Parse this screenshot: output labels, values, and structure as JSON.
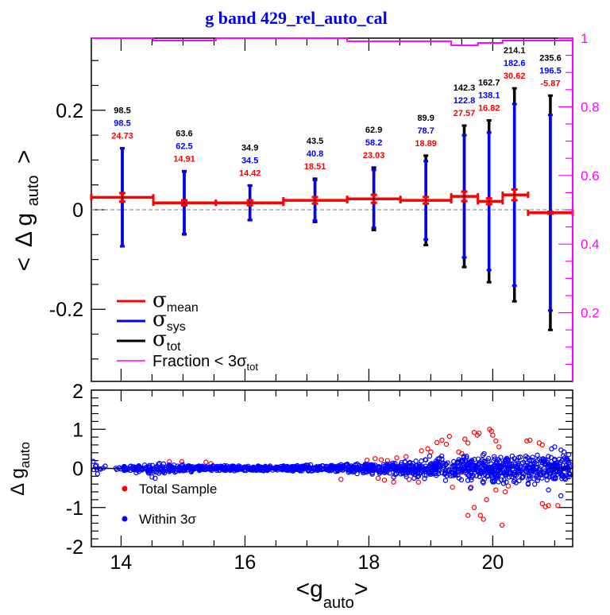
{
  "chart_data": [
    {
      "panel": "upper",
      "type": "line",
      "title": "g band 429_rel_auto_cal",
      "xlabel": "<g_auto>",
      "ylabel": "< Δ g_auto >",
      "xlim": [
        13.52,
        21.29
      ],
      "ylim": [
        -0.345,
        0.345
      ],
      "y_ticks": [
        -0.2,
        0,
        0.2
      ],
      "y_tick_labels": [
        "-0.2",
        "0",
        "0.2"
      ],
      "y_minor_step": 0.05,
      "x_ticks": [
        14,
        16,
        18,
        20
      ],
      "x_minor_step": 0.5,
      "right_axis": {
        "label": "Fraction < 3σ_tot",
        "ylim": [
          0,
          1.0
        ],
        "ticks": [
          0.2,
          0.4,
          0.6,
          0.8,
          1
        ],
        "tick_labels": [
          "0.2",
          "0.4",
          "0.6",
          "0.8",
          "1"
        ],
        "minor_step": 0.05,
        "color": "#ff00ff"
      },
      "reference_line": {
        "y": 0,
        "style": "dashed",
        "color": "#999999"
      },
      "bins": [
        {
          "x": 14.02,
          "xlo": 13.52,
          "xhi": 14.52,
          "mean": 0.025,
          "sigma_mean_mmag": 24.73,
          "sigma_sys_mmag": 98.5,
          "sigma_tot_mmag": 98.5,
          "fraction": 1.0
        },
        {
          "x": 15.02,
          "xlo": 14.52,
          "xhi": 15.53,
          "mean": 0.014,
          "sigma_mean_mmag": 14.91,
          "sigma_sys_mmag": 62.5,
          "sigma_tot_mmag": 63.6,
          "fraction": 0.993
        },
        {
          "x": 16.08,
          "xlo": 15.53,
          "xhi": 16.62,
          "mean": 0.014,
          "sigma_mean_mmag": 14.42,
          "sigma_sys_mmag": 34.5,
          "sigma_tot_mmag": 34.9,
          "fraction": 1.0
        },
        {
          "x": 17.13,
          "xlo": 16.62,
          "xhi": 17.65,
          "mean": 0.019,
          "sigma_mean_mmag": 18.51,
          "sigma_sys_mmag": 40.8,
          "sigma_tot_mmag": 43.5,
          "fraction": 1.0
        },
        {
          "x": 18.08,
          "xlo": 17.65,
          "xhi": 18.51,
          "mean": 0.022,
          "sigma_mean_mmag": 23.03,
          "sigma_sys_mmag": 58.2,
          "sigma_tot_mmag": 62.9,
          "fraction": 0.991
        },
        {
          "x": 18.92,
          "xlo": 18.51,
          "xhi": 19.33,
          "mean": 0.019,
          "sigma_mean_mmag": 18.89,
          "sigma_sys_mmag": 78.7,
          "sigma_tot_mmag": 89.9,
          "fraction": 0.991
        },
        {
          "x": 19.54,
          "xlo": 19.33,
          "xhi": 19.76,
          "mean": 0.027,
          "sigma_mean_mmag": 27.57,
          "sigma_sys_mmag": 122.8,
          "sigma_tot_mmag": 142.3,
          "fraction": 0.979
        },
        {
          "x": 19.94,
          "xlo": 19.76,
          "xhi": 20.16,
          "mean": 0.017,
          "sigma_mean_mmag": 16.82,
          "sigma_sys_mmag": 138.1,
          "sigma_tot_mmag": 162.7,
          "fraction": 0.986
        },
        {
          "x": 20.35,
          "xlo": 20.16,
          "xhi": 20.57,
          "mean": 0.03,
          "sigma_mean_mmag": 30.62,
          "sigma_sys_mmag": 182.6,
          "sigma_tot_mmag": 214.1,
          "fraction": 0.993
        },
        {
          "x": 20.93,
          "xlo": 20.57,
          "xhi": 21.29,
          "mean": -0.006,
          "sigma_mean_mmag": -5.87,
          "sigma_sys_mmag": 196.5,
          "sigma_tot_mmag": 235.6,
          "fraction": 0.993
        }
      ],
      "data_labels": [
        {
          "tot": "98.5",
          "sys": "98.5",
          "mean": "24.73"
        },
        {
          "tot": "63.6",
          "sys": "62.5",
          "mean": "14.91"
        },
        {
          "tot": "34.9",
          "sys": "34.5",
          "mean": "14.42"
        },
        {
          "tot": "43.5",
          "sys": "40.8",
          "mean": "18.51"
        },
        {
          "tot": "62.9",
          "sys": "58.2",
          "mean": "23.03"
        },
        {
          "tot": "89.9",
          "sys": "78.7",
          "mean": "18.89"
        },
        {
          "tot": "142.3",
          "sys": "122.8",
          "mean": "27.57"
        },
        {
          "tot": "162.7",
          "sys": "138.1",
          "mean": "16.82"
        },
        {
          "tot": "214.1",
          "sys": "182.6",
          "mean": "30.62"
        },
        {
          "tot": "235.6",
          "sys": "196.5",
          "mean": "-5.87"
        }
      ],
      "legend": {
        "placement": "bottom-left",
        "entries": [
          {
            "symbol": "σ",
            "sub": "mean",
            "color": "#ff0000"
          },
          {
            "symbol": "σ",
            "sub": "sys",
            "color": "#0000ff"
          },
          {
            "symbol": "σ",
            "sub": "tot",
            "color": "#000000"
          },
          {
            "text": "Fraction < 3σ",
            "sub": "tot",
            "color": "#ff00ff"
          }
        ]
      },
      "colors": {
        "mean": "#ff0000",
        "sys": "#0000ff",
        "tot": "#000000",
        "fraction": "#ff00ff"
      }
    },
    {
      "panel": "lower",
      "type": "scatter",
      "xlabel": "<g_auto>",
      "ylabel": "Δ g_auto",
      "xlim": [
        13.52,
        21.29
      ],
      "ylim": [
        -2,
        2
      ],
      "y_ticks": [
        -2,
        -1,
        0,
        1,
        2
      ],
      "y_tick_labels": [
        "-2",
        "-1",
        "0",
        "1",
        "2"
      ],
      "y_minor_step": 0.2,
      "x_ticks": [
        14,
        16,
        18,
        20
      ],
      "x_tick_labels": [
        "14",
        "16",
        "18",
        "20"
      ],
      "x_minor_step": 0.5,
      "reference_line": {
        "y": 0,
        "style": "solid",
        "color": "#000000"
      },
      "series": [
        {
          "name": "Total Sample",
          "color": "#ff0000",
          "marker": "open-circle",
          "points": [
            [
              14.78,
              0.17
            ],
            [
              14.98,
              0.17
            ],
            [
              15.37,
              0.16
            ],
            [
              15.45,
              0.12
            ],
            [
              17.0,
              0.08
            ],
            [
              17.55,
              -0.28
            ],
            [
              17.97,
              0.21
            ],
            [
              18.1,
              0.25
            ],
            [
              18.15,
              -0.25
            ],
            [
              18.2,
              0.22
            ],
            [
              18.25,
              -0.3
            ],
            [
              18.3,
              0.2
            ],
            [
              18.4,
              -0.35
            ],
            [
              18.45,
              0.27
            ],
            [
              18.6,
              0.3
            ],
            [
              18.65,
              -0.28
            ],
            [
              18.8,
              -0.35
            ],
            [
              18.85,
              0.45
            ],
            [
              18.95,
              0.5
            ],
            [
              19.0,
              0.42
            ],
            [
              19.1,
              0.66
            ],
            [
              19.18,
              0.72
            ],
            [
              19.25,
              0.62
            ],
            [
              19.3,
              0.82
            ],
            [
              19.35,
              -0.48
            ],
            [
              19.45,
              0.42
            ],
            [
              19.5,
              0.38
            ],
            [
              19.5,
              -0.1
            ],
            [
              19.55,
              0.75
            ],
            [
              19.6,
              0.65
            ],
            [
              19.65,
              -0.48
            ],
            [
              19.7,
              0.92
            ],
            [
              19.75,
              0.85
            ],
            [
              19.78,
              0.9
            ],
            [
              19.7,
              -1.0
            ],
            [
              19.6,
              -1.2
            ],
            [
              19.8,
              -1.2
            ],
            [
              19.85,
              -1.3
            ],
            [
              19.95,
              1.0
            ],
            [
              19.98,
              0.95
            ],
            [
              20.0,
              0.85
            ],
            [
              20.05,
              0.7
            ],
            [
              20.1,
              0.55
            ],
            [
              19.9,
              -0.8
            ],
            [
              20.05,
              -0.55
            ],
            [
              20.15,
              -1.45
            ],
            [
              20.2,
              -0.6
            ],
            [
              20.25,
              -0.45
            ],
            [
              20.55,
              0.7
            ],
            [
              20.6,
              0.72
            ],
            [
              20.75,
              0.65
            ],
            [
              20.8,
              0.6
            ],
            [
              20.8,
              -0.9
            ],
            [
              20.85,
              -0.98
            ],
            [
              20.9,
              -0.95
            ],
            [
              21.05,
              -0.95
            ]
          ]
        },
        {
          "name": "Within 3σ",
          "color": "#0000ff",
          "marker": "open-circle",
          "density_profile": [
            {
              "x": 13.55,
              "spread": 0.15
            },
            {
              "x": 14.0,
              "spread": 0.05
            },
            {
              "x": 14.5,
              "spread": 0.12
            },
            {
              "x": 15.5,
              "spread": 0.06
            },
            {
              "x": 16.5,
              "spread": 0.05
            },
            {
              "x": 17.5,
              "spread": 0.08
            },
            {
              "x": 18.5,
              "spread": 0.15
            },
            {
              "x": 19.5,
              "spread": 0.3
            },
            {
              "x": 20.5,
              "spread": 0.35
            },
            {
              "x": 21.25,
              "spread": 0.3
            }
          ],
          "outer_points": [
            [
              13.55,
              0.18
            ],
            [
              13.6,
              0.08
            ],
            [
              13.62,
              -0.14
            ],
            [
              14.45,
              -0.12
            ],
            [
              14.5,
              -0.22
            ],
            [
              14.55,
              -0.25
            ],
            [
              20.95,
              0.5
            ],
            [
              21.0,
              0.55
            ],
            [
              21.15,
              0.42
            ],
            [
              21.22,
              0.2
            ],
            [
              21.25,
              0.1
            ],
            [
              21.1,
              -0.7
            ],
            [
              20.9,
              -0.55
            ]
          ]
        }
      ],
      "legend": {
        "placement": "bottom-left",
        "entries": [
          {
            "label": "Total Sample",
            "color": "#ff0000"
          },
          {
            "label": "Within 3σ",
            "color": "#0000ff"
          }
        ]
      }
    }
  ],
  "labels": {
    "title": "g band 429_rel_auto_cal",
    "upper_ylabel_lt": "<",
    "upper_ylabel_delta": "Δ g",
    "upper_ylabel_sub": "auto",
    "upper_ylabel_gt": ">",
    "lower_ylabel_main": "Δ g",
    "lower_ylabel_sub": "auto",
    "xlabel_main": "<g",
    "xlabel_sub": "auto",
    "xlabel_gt": ">",
    "legend_sigma": "σ",
    "legend_mean": "mean",
    "legend_sys": "sys",
    "legend_tot": "tot",
    "legend_fraction": "Fraction < 3σ",
    "legend_fraction_sub": "tot",
    "legend_total_sample": "Total Sample",
    "legend_within": "Within 3σ"
  }
}
